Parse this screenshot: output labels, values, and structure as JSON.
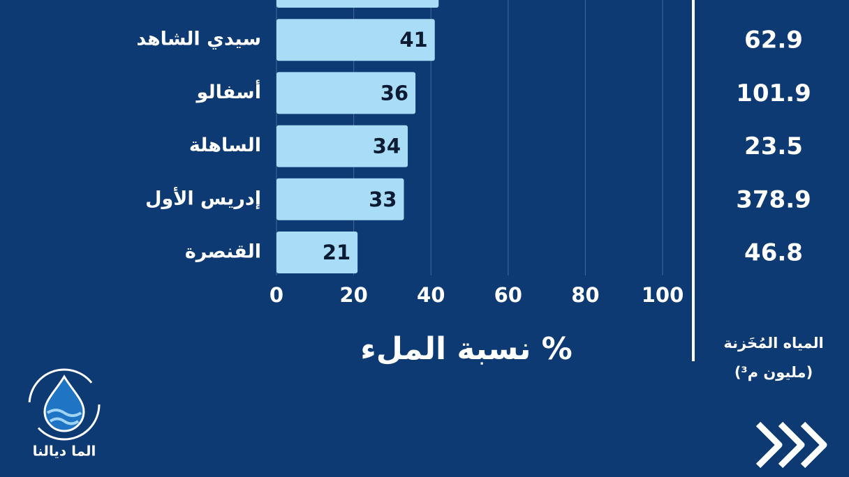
{
  "chart_data": {
    "type": "bar",
    "orientation": "horizontal",
    "categories": [
      null,
      "سيدي الشاهد",
      "أسفالو",
      "الساهلة",
      "إدريس الأول",
      "القنصرة"
    ],
    "values": [
      42,
      41,
      36,
      34,
      33,
      21
    ],
    "color": "#a8dcf7",
    "xlim": [
      0,
      100
    ],
    "xticks": [
      0,
      20,
      40,
      60,
      80,
      100
    ],
    "grid": true,
    "xlabel": "نسبة الملء %",
    "stored_water": {
      "title": "المياه المُخَزنة",
      "unit": "(مليون م³)",
      "values": [
        null,
        62.9,
        101.9,
        23.5,
        378.9,
        46.8
      ]
    }
  },
  "logo": {
    "text": "الما ديالنا"
  }
}
